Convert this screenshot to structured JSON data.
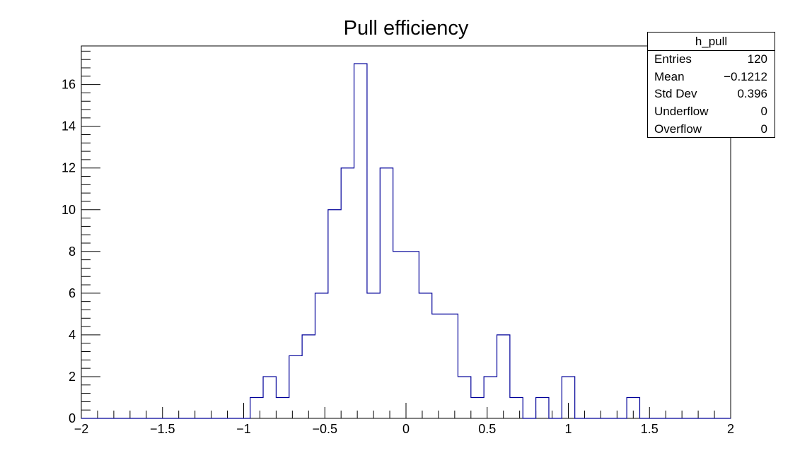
{
  "chart_data": {
    "type": "bar",
    "title": "Pull efficiency",
    "xlim": [
      -2,
      2
    ],
    "ylim": [
      0,
      17.85
    ],
    "bin_width": 0.08,
    "bin_edges_start": -2,
    "values": [
      0,
      0,
      0,
      0,
      0,
      0,
      0,
      0,
      0,
      0,
      0,
      0,
      0,
      1,
      2,
      1,
      3,
      4,
      6,
      10,
      12,
      17,
      6,
      12,
      8,
      8,
      6,
      5,
      5,
      2,
      1,
      2,
      4,
      1,
      0,
      1,
      0,
      2,
      0,
      0,
      0,
      0,
      1,
      0,
      0,
      0,
      0,
      0,
      0,
      0
    ],
    "x_ticks": [
      -2,
      -1.5,
      -1,
      -0.5,
      0,
      0.5,
      1,
      1.5,
      2
    ],
    "x_tick_labels": [
      "−2",
      "−1.5",
      "−1",
      "−0.5",
      "0",
      "0.5",
      "1",
      "1.5",
      "2"
    ],
    "y_ticks": [
      0,
      2,
      4,
      6,
      8,
      10,
      12,
      14,
      16
    ],
    "y_tick_labels": [
      "0",
      "2",
      "4",
      "6",
      "8",
      "10",
      "12",
      "14",
      "16"
    ],
    "line_color": "#000099",
    "grid": false,
    "legend_position": "top-right"
  },
  "stats_box": {
    "name": "h_pull",
    "rows": [
      {
        "label": "Entries",
        "value": "120"
      },
      {
        "label": "Mean",
        "value": "−0.1212"
      },
      {
        "label": "Std Dev",
        "value": "0.396"
      },
      {
        "label": "Underflow",
        "value": "0"
      },
      {
        "label": "Overflow",
        "value": "0"
      }
    ]
  }
}
